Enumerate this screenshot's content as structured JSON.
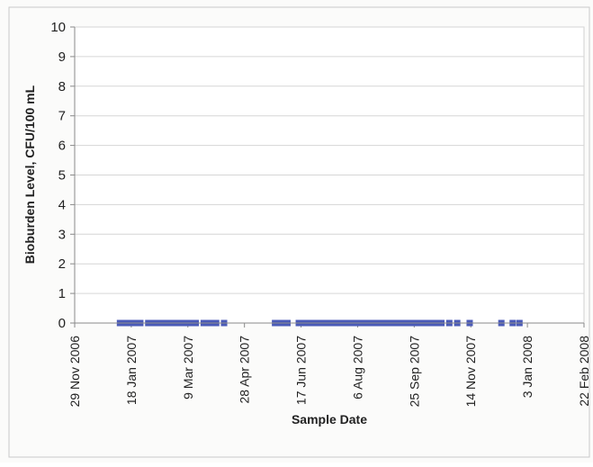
{
  "chart_data": {
    "type": "scatter",
    "title": "",
    "xlabel": "Sample Date",
    "ylabel": "Bioburden Level, CFU/100 mL",
    "ylim": [
      0,
      10
    ],
    "yticks": [
      0,
      1,
      2,
      3,
      4,
      5,
      6,
      7,
      8,
      9,
      10
    ],
    "xlim": [
      "2006-11-29",
      "2008-02-22"
    ],
    "xtick_dates": [
      "2006-11-29",
      "2007-01-18",
      "2007-03-09",
      "2007-04-28",
      "2007-06-17",
      "2007-08-06",
      "2007-09-25",
      "2007-11-14",
      "2008-01-03",
      "2008-02-22"
    ],
    "xtick_labels": [
      "29 Nov 2006",
      "18 Jan 2007",
      "9 Mar 2007",
      "28 Apr 2007",
      "17 Jun 2007",
      "6 Aug 2007",
      "25 Sep 2007",
      "14 Nov 2007",
      "3 Jan 2008",
      "22 Feb 2008"
    ],
    "grid": true,
    "marker_color": "#4a5ab8",
    "series": [
      {
        "x": [
          "2007-01-08",
          "2007-01-11",
          "2007-01-15",
          "2007-01-19",
          "2007-01-22",
          "2007-01-26",
          "2007-02-02",
          "2007-02-05",
          "2007-02-09",
          "2007-02-13",
          "2007-02-16",
          "2007-02-20",
          "2007-02-23",
          "2007-02-27",
          "2007-03-02",
          "2007-03-06",
          "2007-03-09",
          "2007-03-13",
          "2007-03-16",
          "2007-03-23",
          "2007-03-27",
          "2007-03-30",
          "2007-04-03",
          "2007-04-10",
          "2007-05-25",
          "2007-05-29",
          "2007-06-01",
          "2007-06-05",
          "2007-06-15",
          "2007-06-19",
          "2007-06-22",
          "2007-06-26",
          "2007-06-29",
          "2007-07-03",
          "2007-07-06",
          "2007-07-10",
          "2007-07-13",
          "2007-07-17",
          "2007-07-20",
          "2007-07-24",
          "2007-07-27",
          "2007-07-31",
          "2007-08-03",
          "2007-08-07",
          "2007-08-10",
          "2007-08-14",
          "2007-08-17",
          "2007-08-21",
          "2007-08-24",
          "2007-08-28",
          "2007-08-31",
          "2007-09-04",
          "2007-09-07",
          "2007-09-11",
          "2007-09-14",
          "2007-09-18",
          "2007-09-21",
          "2007-09-25",
          "2007-09-28",
          "2007-10-02",
          "2007-10-05",
          "2007-10-09",
          "2007-10-12",
          "2007-10-16",
          "2007-10-19",
          "2007-10-26",
          "2007-11-02",
          "2007-11-13",
          "2007-12-11",
          "2007-12-21",
          "2007-12-27"
        ],
        "y": [
          0,
          0,
          0,
          0,
          0,
          0,
          0,
          0,
          0,
          0,
          0,
          0,
          0,
          0,
          0,
          0,
          0,
          0,
          0,
          0,
          0,
          0,
          0,
          0,
          0,
          0,
          0,
          0,
          0,
          0,
          0,
          0,
          0,
          0,
          0,
          0,
          0,
          0,
          0,
          0,
          0,
          0,
          0,
          0,
          0,
          0,
          0,
          0,
          0,
          0,
          0,
          0,
          0,
          0,
          0,
          0,
          0,
          0,
          0,
          0,
          0,
          0,
          0,
          0,
          0,
          0,
          0,
          0,
          0,
          0,
          0
        ]
      }
    ]
  }
}
